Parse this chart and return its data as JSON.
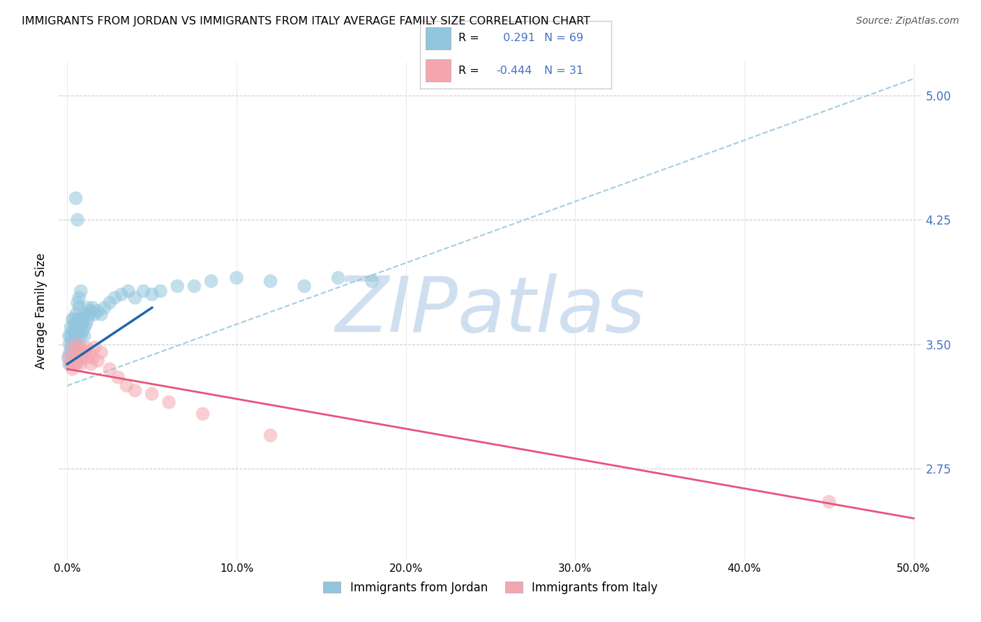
{
  "title": "IMMIGRANTS FROM JORDAN VS IMMIGRANTS FROM ITALY AVERAGE FAMILY SIZE CORRELATION CHART",
  "source": "Source: ZipAtlas.com",
  "ylabel": "Average Family Size",
  "xlim": [
    -0.005,
    0.505
  ],
  "ylim": [
    2.2,
    5.2
  ],
  "yticks": [
    2.75,
    3.5,
    4.25,
    5.0
  ],
  "xticks": [
    0.0,
    0.1,
    0.2,
    0.3,
    0.4,
    0.5
  ],
  "xticklabels": [
    "0.0%",
    "10.0%",
    "20.0%",
    "30.0%",
    "40.0%",
    "50.0%"
  ],
  "jordan_color": "#92c5de",
  "italy_color": "#f4a6b0",
  "jordan_R": 0.291,
  "jordan_N": 69,
  "italy_R": -0.444,
  "italy_N": 31,
  "jordan_line_color": "#2166ac",
  "italy_line_color": "#e8537a",
  "dash_line_color": "#92c5de",
  "right_axis_color": "#4472c4",
  "background_color": "#ffffff",
  "grid_color": "#cccccc",
  "watermark_color": "#cfdff0",
  "jordan_scatter_x": [
    0.0005,
    0.001,
    0.001,
    0.0012,
    0.0015,
    0.002,
    0.002,
    0.002,
    0.0022,
    0.0025,
    0.003,
    0.003,
    0.003,
    0.003,
    0.004,
    0.004,
    0.004,
    0.004,
    0.005,
    0.005,
    0.005,
    0.005,
    0.005,
    0.006,
    0.006,
    0.006,
    0.006,
    0.007,
    0.007,
    0.007,
    0.007,
    0.008,
    0.008,
    0.008,
    0.009,
    0.009,
    0.01,
    0.01,
    0.01,
    0.011,
    0.012,
    0.012,
    0.013,
    0.014,
    0.015,
    0.016,
    0.018,
    0.02,
    0.022,
    0.025,
    0.028,
    0.032,
    0.036,
    0.04,
    0.045,
    0.05,
    0.055,
    0.065,
    0.075,
    0.085,
    0.1,
    0.12,
    0.14,
    0.16,
    0.18,
    0.005,
    0.006,
    0.007,
    0.008
  ],
  "jordan_scatter_y": [
    3.42,
    3.55,
    3.38,
    3.5,
    3.45,
    3.6,
    3.38,
    3.55,
    3.48,
    3.52,
    3.58,
    3.45,
    3.65,
    3.42,
    3.55,
    3.65,
    3.48,
    3.62,
    3.5,
    3.58,
    3.42,
    3.68,
    3.38,
    3.55,
    3.62,
    3.48,
    3.75,
    3.65,
    3.58,
    3.45,
    3.72,
    3.55,
    3.62,
    3.48,
    3.65,
    3.58,
    3.6,
    3.55,
    3.68,
    3.62,
    3.65,
    3.72,
    3.68,
    3.7,
    3.72,
    3.68,
    3.7,
    3.68,
    3.72,
    3.75,
    3.78,
    3.8,
    3.82,
    3.78,
    3.82,
    3.8,
    3.82,
    3.85,
    3.85,
    3.88,
    3.9,
    3.88,
    3.85,
    3.9,
    3.88,
    4.38,
    4.25,
    3.78,
    3.82
  ],
  "italy_scatter_x": [
    0.001,
    0.002,
    0.003,
    0.003,
    0.004,
    0.005,
    0.005,
    0.006,
    0.006,
    0.007,
    0.008,
    0.008,
    0.009,
    0.01,
    0.011,
    0.012,
    0.013,
    0.014,
    0.015,
    0.016,
    0.018,
    0.02,
    0.025,
    0.03,
    0.035,
    0.04,
    0.05,
    0.06,
    0.08,
    0.12,
    0.45
  ],
  "italy_scatter_y": [
    3.42,
    3.38,
    3.35,
    3.48,
    3.4,
    3.45,
    3.38,
    3.5,
    3.42,
    3.4,
    3.45,
    3.38,
    3.42,
    3.45,
    3.48,
    3.42,
    3.45,
    3.38,
    3.42,
    3.48,
    3.4,
    3.45,
    3.35,
    3.3,
    3.25,
    3.22,
    3.2,
    3.15,
    3.08,
    2.95,
    2.55
  ],
  "jordan_line_x0": 0.0,
  "jordan_line_x1": 0.05,
  "jordan_line_y0": 3.38,
  "jordan_line_y1": 3.72,
  "italy_line_x0": 0.0,
  "italy_line_x1": 0.5,
  "italy_line_y0": 3.35,
  "italy_line_y1": 2.45,
  "dash_line_x0": 0.0,
  "dash_line_x1": 0.5,
  "dash_line_y0": 3.25,
  "dash_line_y1": 5.1
}
